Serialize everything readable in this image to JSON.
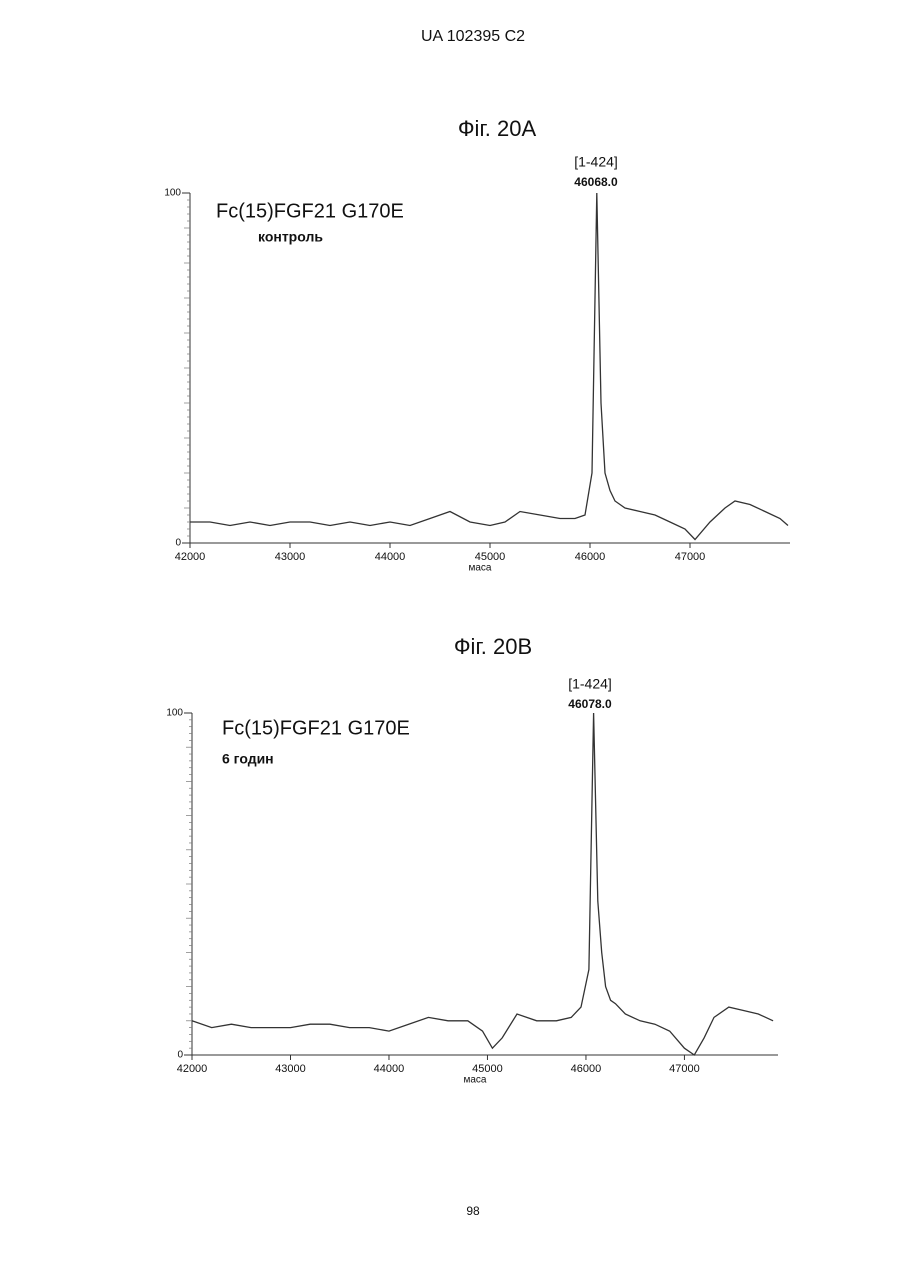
{
  "header": "UA   102395   C2",
  "page_number": "98",
  "chart_data": [
    {
      "type": "line",
      "title": "Фіг. 20A",
      "sample": "Fc(15)FGF21 G170E",
      "condition": "контроль",
      "peak_range": "[1-424]",
      "peak_mass": "46068.0",
      "x_label": "маса",
      "color": "#333333",
      "x": [
        42000,
        42200,
        42400,
        42600,
        42800,
        43000,
        43200,
        43400,
        43600,
        43800,
        44000,
        44200,
        44400,
        44600,
        44800,
        45000,
        45150,
        45300,
        45500,
        45700,
        45850,
        45950,
        46020,
        46068,
        46110,
        46150,
        46200,
        46250,
        46350,
        46500,
        46650,
        46800,
        46950,
        47050,
        47200,
        47350,
        47450,
        47600,
        47750,
        47900,
        47980
      ],
      "values": [
        6,
        6,
        5,
        6,
        5,
        6,
        6,
        5,
        6,
        5,
        6,
        5,
        7,
        9,
        6,
        5,
        6,
        9,
        8,
        7,
        7,
        8,
        20,
        100,
        40,
        20,
        15,
        12,
        10,
        9,
        8,
        6,
        4,
        1,
        6,
        10,
        12,
        11,
        9,
        7,
        5
      ],
      "xlim": [
        42000,
        48000
      ],
      "ylim": [
        0,
        100
      ],
      "xticks": [
        42000,
        43000,
        44000,
        45000,
        46000,
        47000
      ],
      "yticks": [
        0,
        100
      ]
    },
    {
      "type": "line",
      "title": "Фіг. 20B",
      "sample": "Fc(15)FGF21 G170E",
      "condition": "6 годин",
      "peak_range": "[1-424]",
      "peak_mass": "46078.0",
      "x_label": "маса",
      "color": "#333333",
      "x": [
        42000,
        42200,
        42400,
        42600,
        42800,
        43000,
        43200,
        43400,
        43600,
        43800,
        44000,
        44200,
        44400,
        44600,
        44800,
        44950,
        45050,
        45150,
        45300,
        45500,
        45700,
        45850,
        45950,
        46030,
        46078,
        46120,
        46160,
        46200,
        46250,
        46300,
        46400,
        46550,
        46700,
        46850,
        47000,
        47100,
        47200,
        47300,
        47450,
        47600,
        47750,
        47900
      ],
      "values": [
        10,
        8,
        9,
        8,
        8,
        8,
        9,
        9,
        8,
        8,
        7,
        9,
        11,
        10,
        10,
        7,
        2,
        5,
        12,
        10,
        10,
        11,
        14,
        25,
        100,
        45,
        30,
        20,
        16,
        15,
        12,
        10,
        9,
        7,
        2,
        0,
        5,
        11,
        14,
        13,
        12,
        10
      ],
      "xlim": [
        42000,
        47950
      ],
      "ylim": [
        0,
        100
      ],
      "xticks": [
        42000,
        43000,
        44000,
        45000,
        46000,
        47000
      ],
      "yticks": [
        0,
        100
      ]
    }
  ]
}
